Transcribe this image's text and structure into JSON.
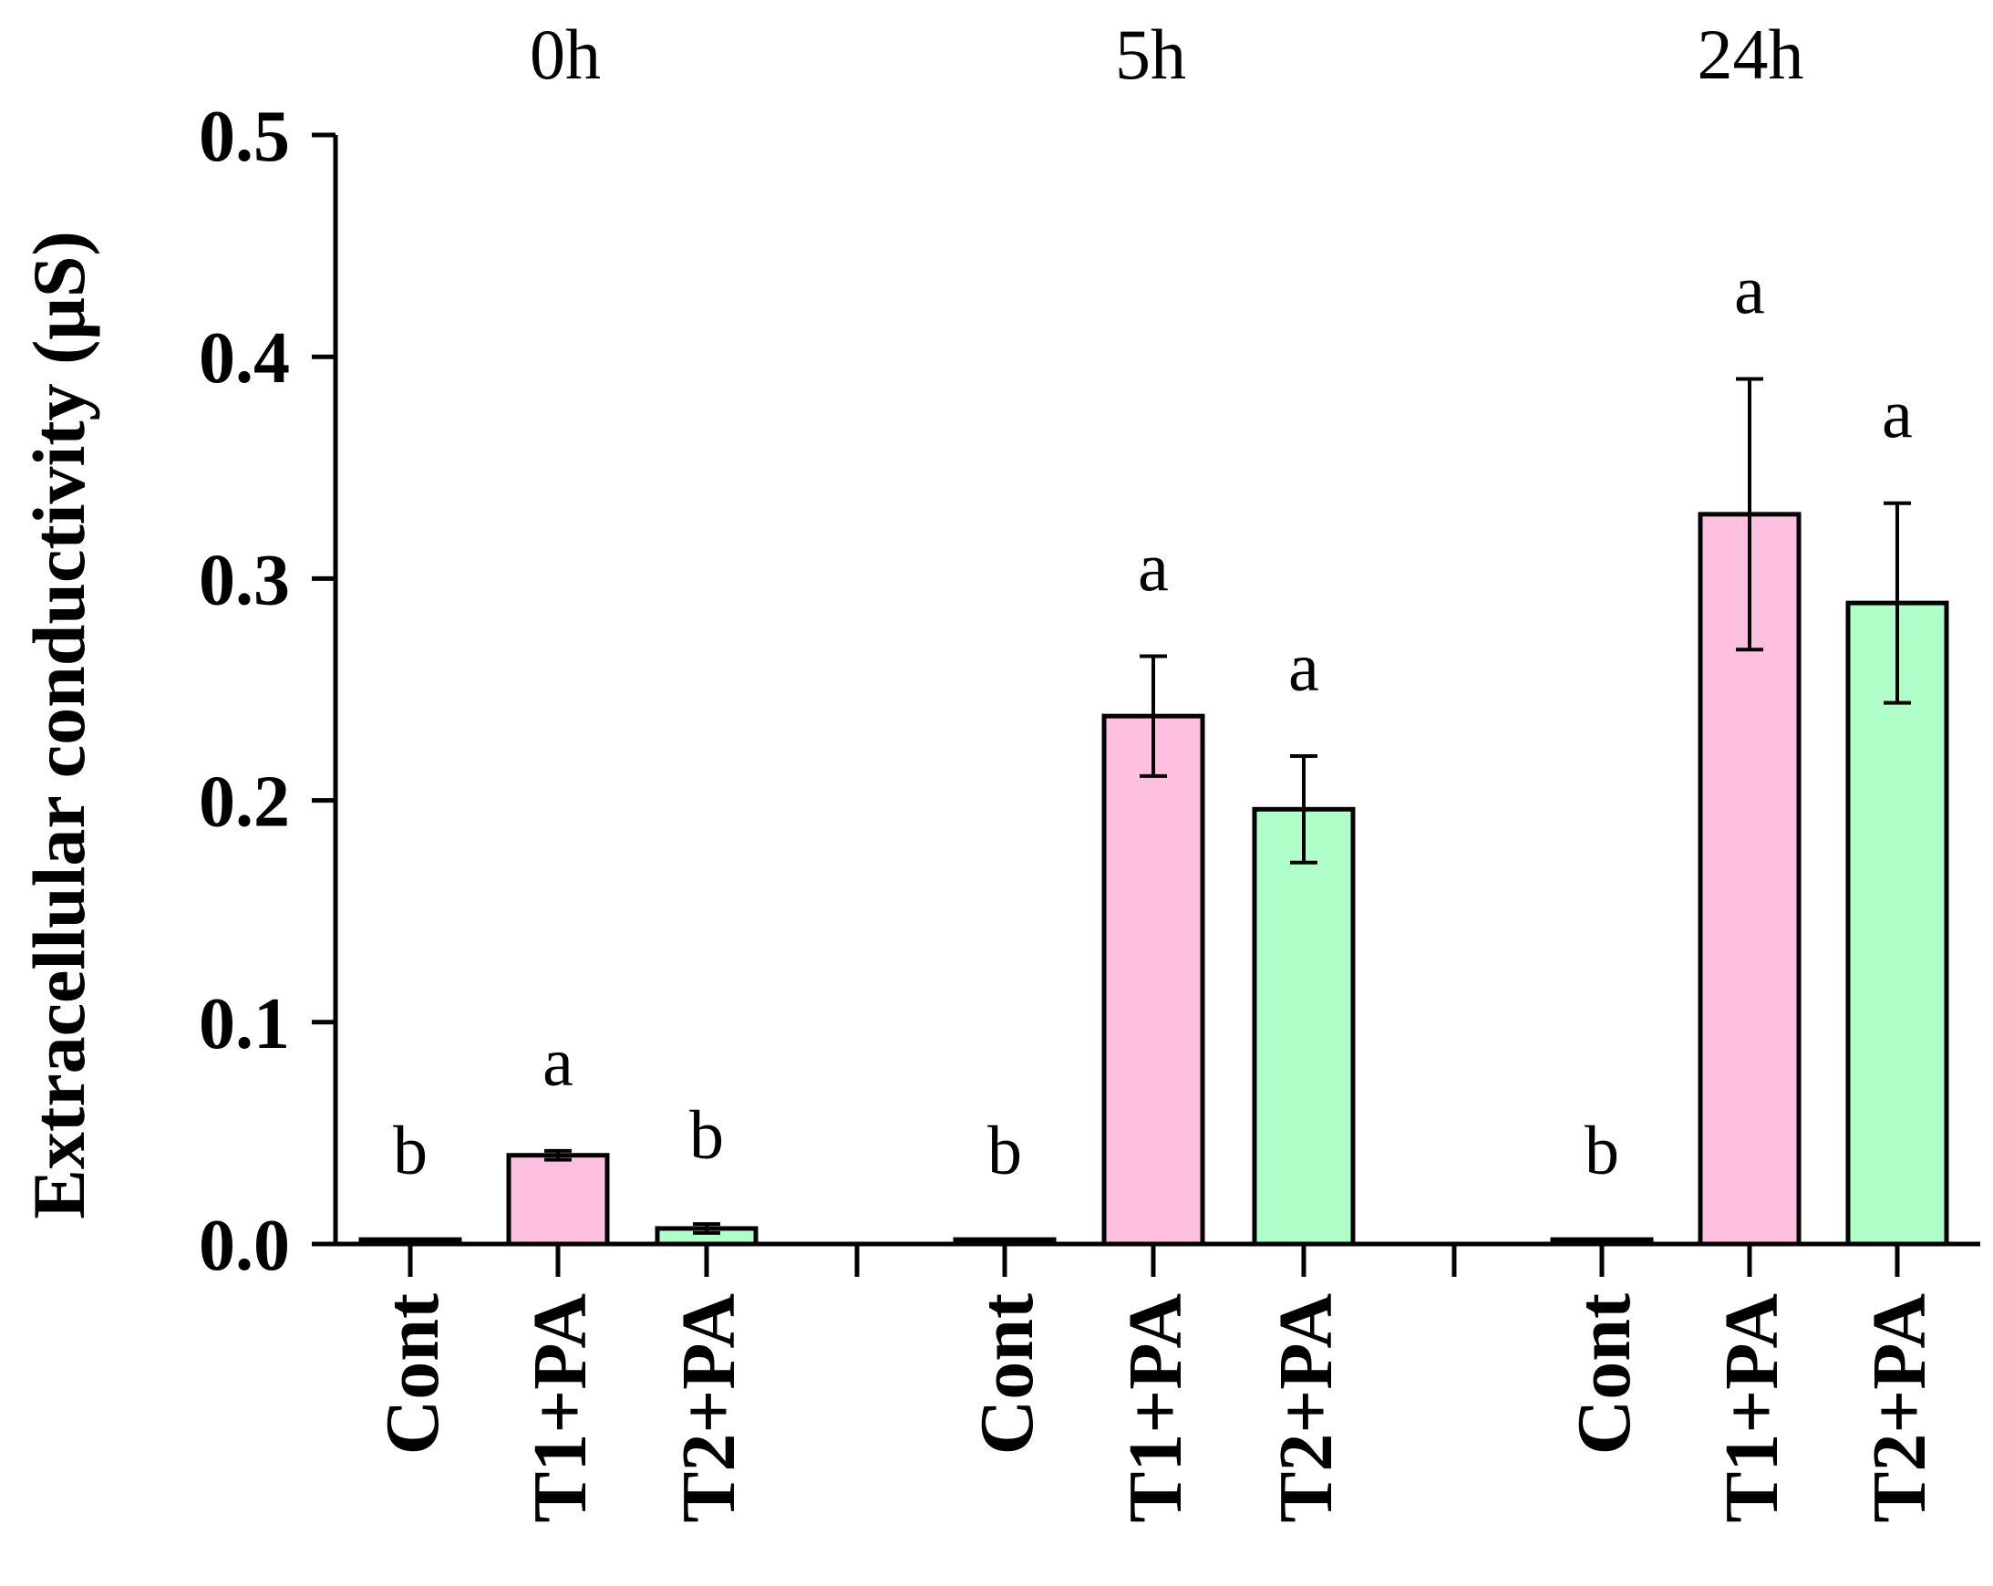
{
  "chart_data": {
    "type": "bar",
    "ylabel": "Extracellular conductivity (μS)",
    "ylim": [
      0,
      0.5
    ],
    "yticks": [
      "0.0",
      "0.1",
      "0.2",
      "0.3",
      "0.4",
      "0.5"
    ],
    "grid": false,
    "groups": [
      {
        "label": "0h",
        "bars": [
          {
            "category": "Cont",
            "value": 0.002,
            "error": 0.0,
            "letter": "b",
            "color": "#ffffff"
          },
          {
            "category": "T1+PA",
            "value": 0.04,
            "error": 0.002,
            "letter": "a",
            "color": "#ffc0e0"
          },
          {
            "category": "T2+PA",
            "value": 0.007,
            "error": 0.002,
            "letter": "b",
            "color": "#b0ffc8"
          }
        ]
      },
      {
        "label": "5h",
        "bars": [
          {
            "category": "Cont",
            "value": 0.002,
            "error": 0.0,
            "letter": "b",
            "color": "#ffffff"
          },
          {
            "category": "T1+PA",
            "value": 0.238,
            "error": 0.027,
            "letter": "a",
            "color": "#ffc0e0"
          },
          {
            "category": "T2+PA",
            "value": 0.196,
            "error": 0.024,
            "letter": "a",
            "color": "#b0ffc8"
          }
        ]
      },
      {
        "label": "24h",
        "bars": [
          {
            "category": "Cont",
            "value": 0.002,
            "error": 0.0,
            "letter": "b",
            "color": "#ffffff"
          },
          {
            "category": "T1+PA",
            "value": 0.329,
            "error": 0.061,
            "letter": "a",
            "color": "#ffc0e0"
          },
          {
            "category": "T2+PA",
            "value": 0.289,
            "error": 0.045,
            "letter": "a",
            "color": "#b0ffc8"
          }
        ]
      }
    ]
  }
}
